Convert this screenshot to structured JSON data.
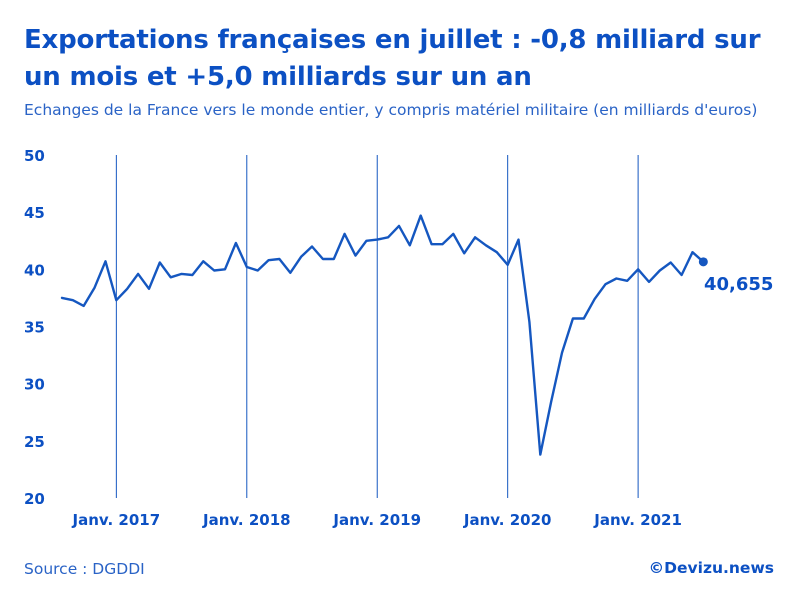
{
  "header": {
    "title": "Exportations françaises en juillet : -0,8 milliard sur un mois et +5,0 milliards sur un an",
    "subtitle": "Echanges de la France vers le monde entier, y compris matériel militaire (en milliards d'euros)"
  },
  "footer": {
    "source": "Source : DGDDI",
    "brand": "©Devizu.news"
  },
  "colors": {
    "accent": "#0c50c3",
    "line": "#1557c0"
  },
  "chart_data": {
    "type": "line",
    "title": "Exportations françaises en juillet : -0,8 milliard sur un mois et +5,0 milliards sur un an",
    "xlabel": "",
    "ylabel": "",
    "ylim": [
      20,
      50
    ],
    "yticks": [
      20,
      25,
      30,
      35,
      40,
      45,
      50
    ],
    "grid": "vertical lines at each January",
    "x_start": "2016-08",
    "x_end": "2021-07",
    "x_ticks": [
      {
        "index": 5,
        "label": "Janv. 2017"
      },
      {
        "index": 17,
        "label": "Janv. 2018"
      },
      {
        "index": 29,
        "label": "Janv. 2019"
      },
      {
        "index": 41,
        "label": "Janv. 2020"
      },
      {
        "index": 53,
        "label": "Janv. 2021"
      }
    ],
    "series": [
      {
        "name": "Exportations",
        "values": [
          37.5,
          37.3,
          36.8,
          38.4,
          40.7,
          37.3,
          38.3,
          39.6,
          38.3,
          40.6,
          39.3,
          39.6,
          39.5,
          40.7,
          39.9,
          40.0,
          42.3,
          40.2,
          39.9,
          40.8,
          40.9,
          39.7,
          41.1,
          42.0,
          40.9,
          40.9,
          43.1,
          41.2,
          42.5,
          42.6,
          42.8,
          43.8,
          42.1,
          44.7,
          42.2,
          42.2,
          43.1,
          41.4,
          42.8,
          42.1,
          41.5,
          40.4,
          42.6,
          35.4,
          23.8,
          28.4,
          32.7,
          35.7,
          35.7,
          37.4,
          38.7,
          39.2,
          39.0,
          40.0,
          38.9,
          39.9,
          40.6,
          39.5,
          41.5,
          40.655
        ]
      }
    ],
    "last_value_label": "40,655"
  }
}
